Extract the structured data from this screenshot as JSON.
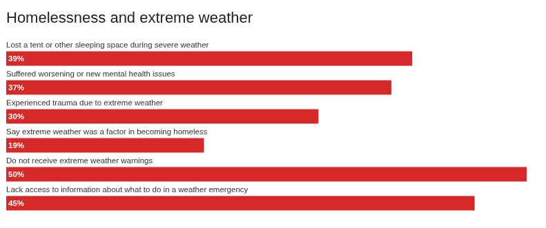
{
  "chart_data": {
    "type": "bar",
    "title": "Homelessness and extreme weather",
    "orientation": "horizontal",
    "categories": [
      "Lost a tent or other sleeping space during severe weather",
      "Suffered worsening or new mental health issues",
      "Experienced trauma due to extreme weather",
      "Say extreme weather was a factor in becoming homeless",
      "Do not receive extreme weather warnings",
      "Lack access to information about what to do in a weather emergency"
    ],
    "values": [
      39,
      37,
      30,
      19,
      50,
      45
    ],
    "value_labels": [
      "39%",
      "37%",
      "30%",
      "19%",
      "50%",
      "45%"
    ],
    "color": "#d62a2a",
    "xlim": [
      0,
      50
    ],
    "grid": false,
    "tick_labels": false,
    "data_labels": true
  }
}
